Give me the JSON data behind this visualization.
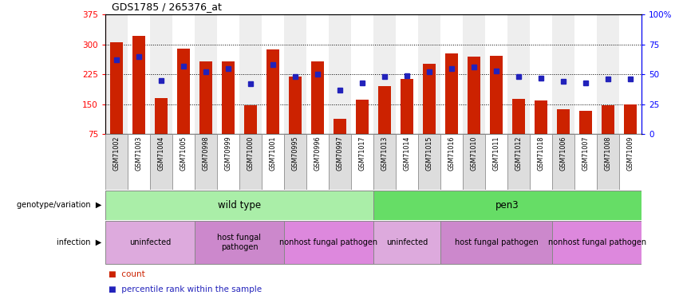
{
  "title": "GDS1785 / 265376_at",
  "samples": [
    "GSM71002",
    "GSM71003",
    "GSM71004",
    "GSM71005",
    "GSM70998",
    "GSM70999",
    "GSM71000",
    "GSM71001",
    "GSM70995",
    "GSM70996",
    "GSM70997",
    "GSM71017",
    "GSM71013",
    "GSM71014",
    "GSM71015",
    "GSM71016",
    "GSM71010",
    "GSM71011",
    "GSM71012",
    "GSM71018",
    "GSM71006",
    "GSM71007",
    "GSM71008",
    "GSM71009"
  ],
  "counts": [
    305,
    322,
    165,
    290,
    258,
    258,
    147,
    287,
    220,
    257,
    113,
    162,
    195,
    213,
    252,
    278,
    270,
    272,
    163,
    160,
    138,
    133,
    147,
    149
  ],
  "percentile": [
    62,
    65,
    45,
    57,
    52,
    55,
    42,
    58,
    48,
    50,
    37,
    43,
    48,
    49,
    52,
    55,
    56,
    53,
    48,
    47,
    44,
    43,
    46,
    46
  ],
  "bar_color": "#CC2200",
  "square_color": "#2222BB",
  "ylim_left": [
    75,
    375
  ],
  "ylim_right": [
    0,
    100
  ],
  "yticks_left": [
    75,
    150,
    225,
    300,
    375
  ],
  "ytick_labels_left": [
    "75",
    "150",
    "225",
    "300",
    "375"
  ],
  "yticks_right": [
    0,
    25,
    50,
    75,
    100
  ],
  "ytick_labels_right": [
    "0",
    "25",
    "50",
    "75",
    "100%"
  ],
  "hlines": [
    150,
    225,
    300
  ],
  "genotype_groups": [
    {
      "label": "wild type",
      "start": 0,
      "end": 11,
      "color": "#AAEEA8"
    },
    {
      "label": "pen3",
      "start": 12,
      "end": 23,
      "color": "#66DD66"
    }
  ],
  "infection_groups": [
    {
      "label": "uninfected",
      "start": 0,
      "end": 3,
      "color": "#DDAADD"
    },
    {
      "label": "host fungal\npathogen",
      "start": 4,
      "end": 7,
      "color": "#CC88CC"
    },
    {
      "label": "nonhost fungal pathogen",
      "start": 8,
      "end": 11,
      "color": "#DD88DD"
    },
    {
      "label": "uninfected",
      "start": 12,
      "end": 14,
      "color": "#DDAADD"
    },
    {
      "label": "host fungal pathogen",
      "start": 15,
      "end": 19,
      "color": "#CC88CC"
    },
    {
      "label": "nonhost fungal pathogen",
      "start": 20,
      "end": 23,
      "color": "#DD88DD"
    }
  ],
  "legend_count_label": "count",
  "legend_pct_label": "percentile rank within the sample",
  "genotype_label": "genotype/variation",
  "infection_label": "infection"
}
